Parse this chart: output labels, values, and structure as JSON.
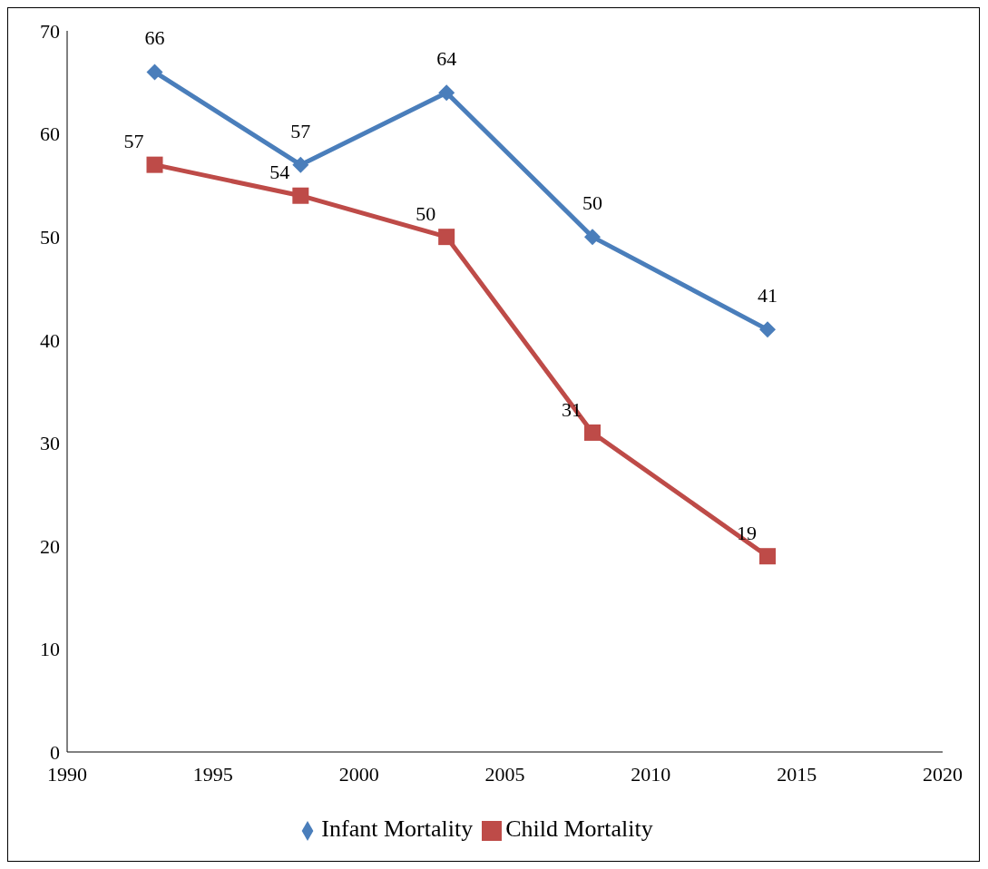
{
  "chart_data": {
    "type": "line",
    "x": [
      1993,
      1998,
      2003,
      2008,
      2014
    ],
    "series": [
      {
        "name": "Infant Mortality",
        "color": "#4a7ebb",
        "values": [
          66,
          57,
          64,
          50,
          41
        ],
        "marker": "diamond"
      },
      {
        "name": "Child Mortality",
        "color": "#be4b48",
        "values": [
          57,
          54,
          50,
          31,
          19
        ],
        "marker": "square"
      }
    ],
    "xlim": [
      1990,
      2020
    ],
    "xticks": [
      1990,
      1995,
      2000,
      2005,
      2010,
      2015,
      2020
    ],
    "ylim": [
      0,
      70
    ],
    "yticks": [
      0,
      10,
      20,
      30,
      40,
      50,
      60,
      70
    ],
    "grid": false,
    "legend": "bottom",
    "data_labels": true
  }
}
